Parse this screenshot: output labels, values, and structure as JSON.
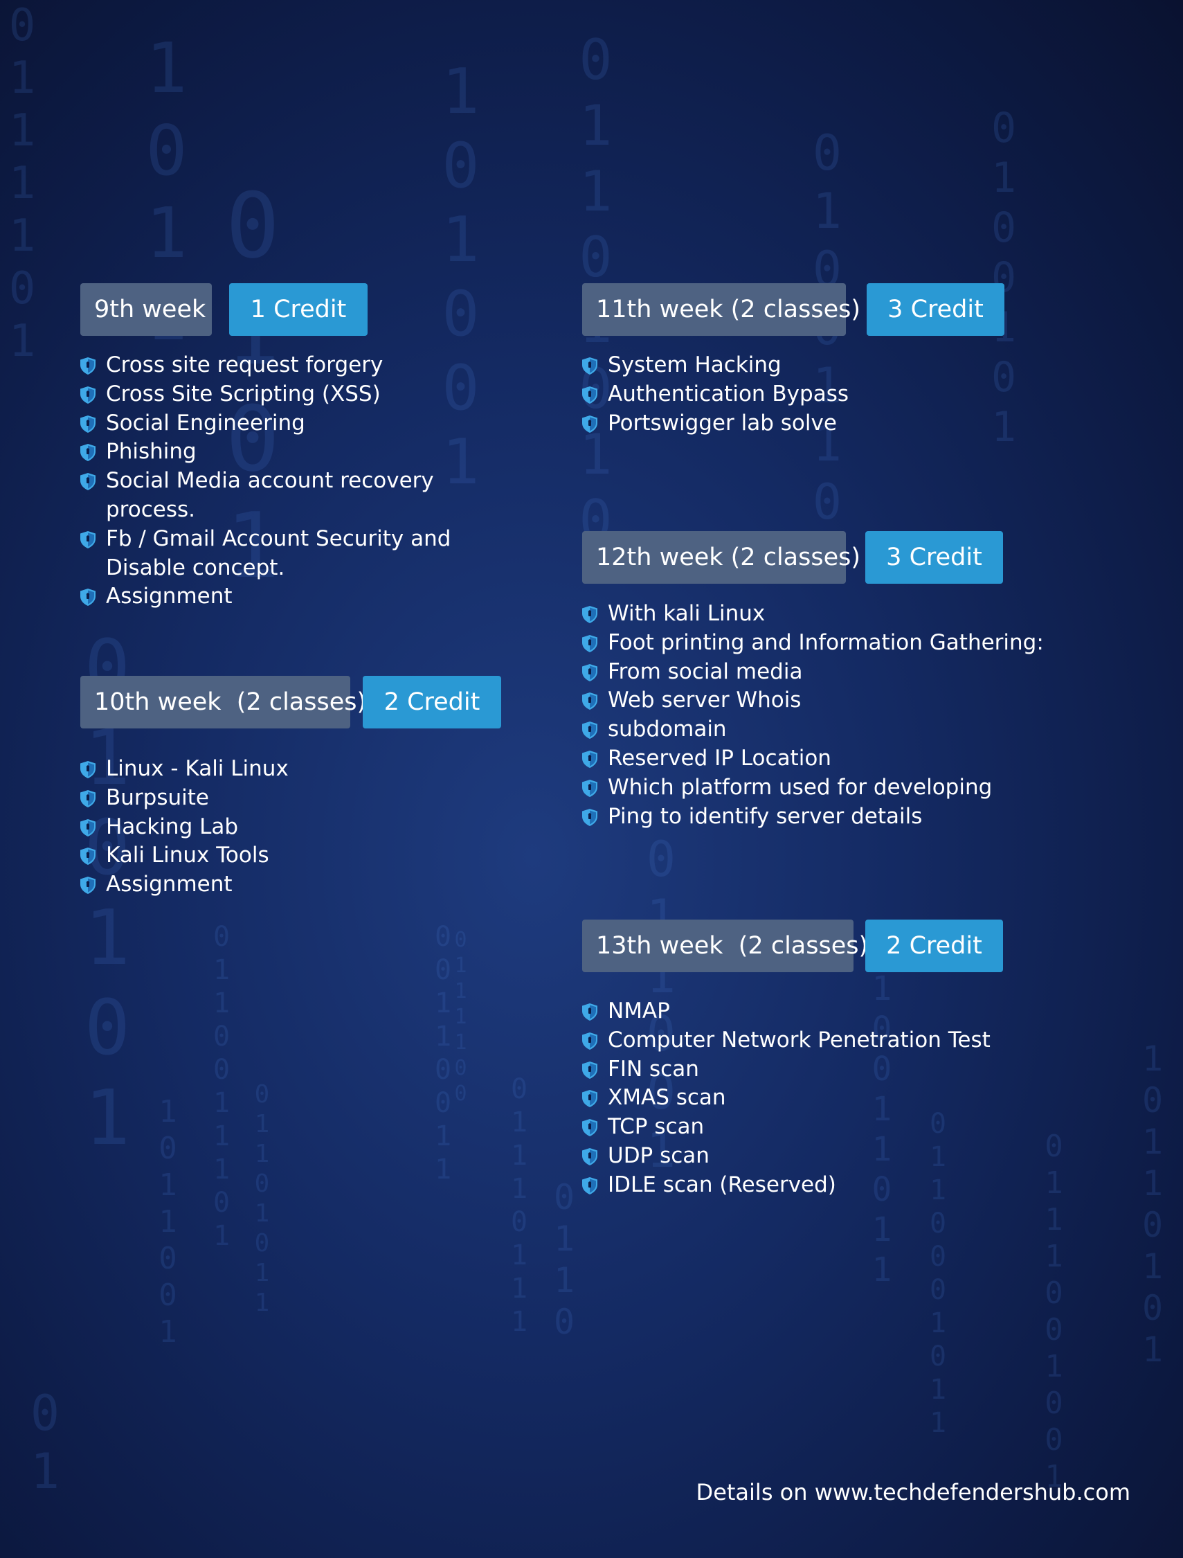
{
  "weeks": [
    {
      "week": "9th week",
      "credit": "1 Credit",
      "items": [
        "Cross site request forgery",
        "Cross Site Scripting (XSS)",
        "Social Engineering",
        "Phishing",
        "Social Media account recovery process.",
        "Fb / Gmail Account Security and Disable concept.",
        "Assignment"
      ]
    },
    {
      "week": "10th week  (2 classes)",
      "credit": "2 Credit",
      "items": [
        "Linux - Kali Linux",
        "Burpsuite",
        "Hacking Lab",
        "Kali Linux Tools",
        "Assignment"
      ]
    },
    {
      "week": "11th week (2 classes)",
      "credit": "3 Credit",
      "items": [
        "System Hacking",
        "Authentication Bypass",
        "Portswigger lab solve"
      ]
    },
    {
      "week": "12th week (2 classes)",
      "credit": "3 Credit",
      "items": [
        "With kali Linux",
        "Foot printing and Information Gathering:",
        "From social media",
        "Web server Whois",
        "subdomain",
        "Reserved IP Location",
        "Which platform used for developing",
        "Ping to identify server details"
      ]
    },
    {
      "week": "13th week  (2 classes)",
      "credit": "2 Credit",
      "items": [
        "NMAP",
        "Computer Network Penetration Test",
        "FIN scan",
        "XMAS scan",
        "TCP scan",
        "UDP scan",
        "IDLE scan (Reserved)"
      ]
    }
  ],
  "footer": "Details on www.techdefendershub.com",
  "icons": {
    "bullet": "shield-icon"
  },
  "colors": {
    "week_badge": "#4e6282",
    "credit_badge": "#2a99d4",
    "shield": "#3fa9e8"
  }
}
